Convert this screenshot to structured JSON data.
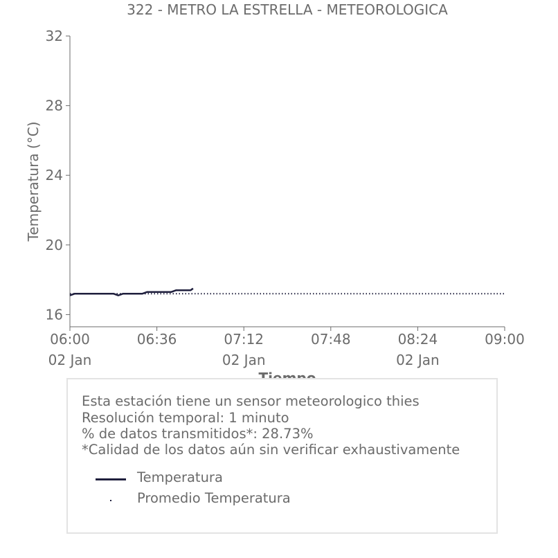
{
  "chart_data": {
    "type": "line",
    "title": "322 - METRO LA ESTRELLA - METEOROLOGICA",
    "xlabel": "Tiempo",
    "ylabel": "Temperatura (°C)",
    "ylim": [
      15.3,
      32
    ],
    "xlim": [
      "06:00",
      "09:00"
    ],
    "yticks": [
      16,
      20,
      24,
      28,
      32
    ],
    "xticks": [
      {
        "time": "06:00",
        "date": "02 Jan"
      },
      {
        "time": "06:36",
        "date": ""
      },
      {
        "time": "07:12",
        "date": "02 Jan"
      },
      {
        "time": "07:48",
        "date": ""
      },
      {
        "time": "08:24",
        "date": "02 Jan"
      },
      {
        "time": "09:00",
        "date": ""
      }
    ],
    "grid": false,
    "series": [
      {
        "name": "Temperatura",
        "style": "solid",
        "color": "#1f1f3d",
        "x": [
          "06:00",
          "06:02",
          "06:04",
          "06:06",
          "06:08",
          "06:10",
          "06:12",
          "06:14",
          "06:16",
          "06:18",
          "06:20",
          "06:22",
          "06:24",
          "06:26",
          "06:28",
          "06:30",
          "06:32",
          "06:34",
          "06:36",
          "06:38",
          "06:40",
          "06:42",
          "06:44",
          "06:46",
          "06:48",
          "06:50",
          "06:51"
        ],
        "values": [
          17.1,
          17.2,
          17.2,
          17.2,
          17.2,
          17.2,
          17.2,
          17.2,
          17.2,
          17.2,
          17.1,
          17.2,
          17.2,
          17.2,
          17.2,
          17.2,
          17.3,
          17.3,
          17.3,
          17.3,
          17.3,
          17.3,
          17.4,
          17.4,
          17.4,
          17.4,
          17.5
        ]
      },
      {
        "name": "Promedio Temperatura",
        "style": "dotted",
        "color": "#1f1f3d",
        "x": [
          "06:00",
          "09:00"
        ],
        "values": [
          17.2,
          17.2
        ]
      }
    ]
  },
  "info": {
    "line1": "Esta estación tiene un sensor meteorologico thies",
    "line2": "Resolución temporal: 1 minuto",
    "line3": "% de datos transmitidos*: 28.73%",
    "line4": "*Calidad de los datos aún sin verificar exhaustivamente"
  },
  "colors": {
    "text": "#6b6b6b",
    "axis": "#6b6b6b",
    "series": "#1f1f3d",
    "box_border": "#e3e3e3"
  }
}
